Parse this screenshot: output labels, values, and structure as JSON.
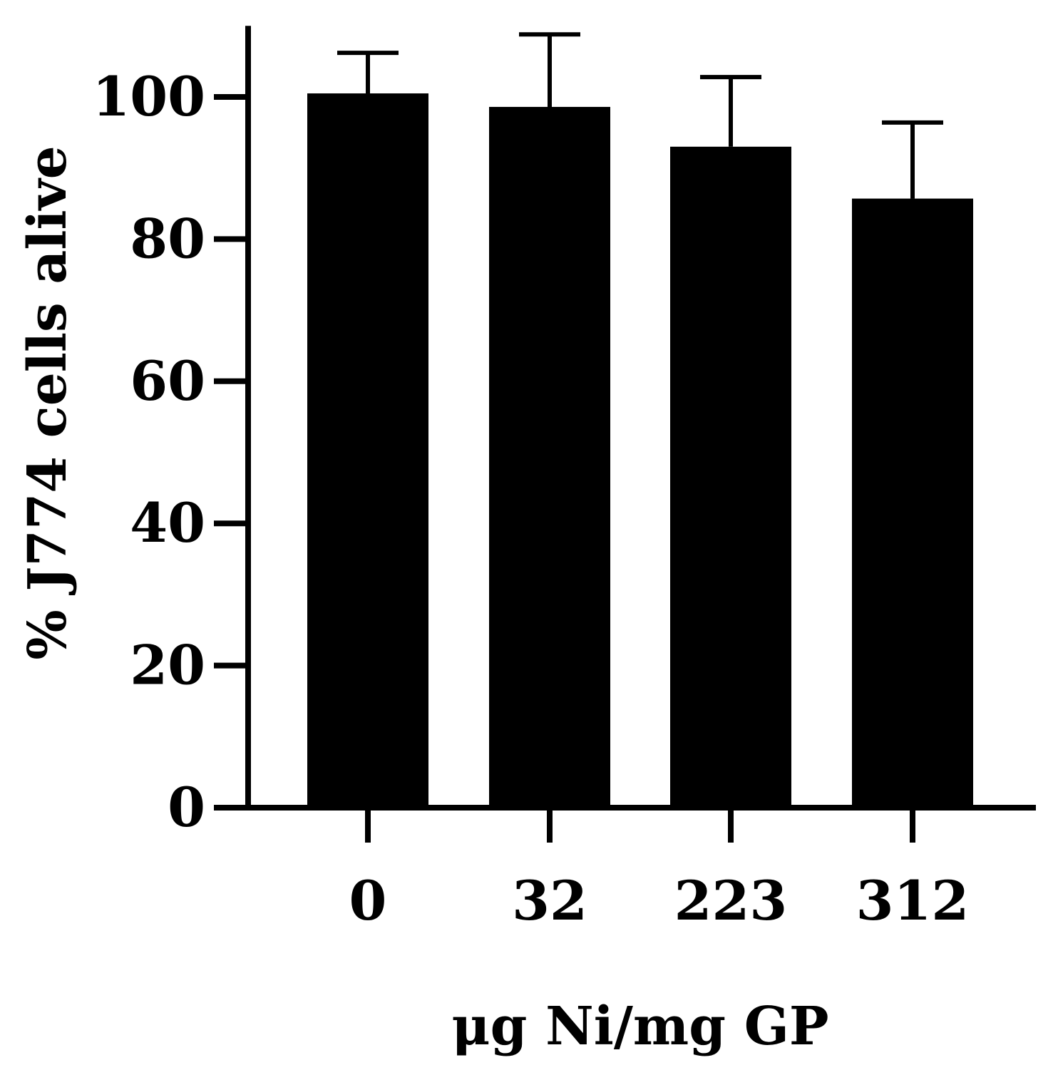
{
  "chart_data": {
    "type": "bar",
    "categories": [
      "0",
      "32",
      "223",
      "312"
    ],
    "values": [
      100.5,
      98.6,
      93,
      85.7
    ],
    "error_upper": [
      106.2,
      108.8,
      102.8,
      96.4
    ],
    "xlabel": "μg Ni/mg GP",
    "ylabel": "% J774 cells alive",
    "ylim": [
      0,
      110
    ],
    "yticks": [
      "0",
      "20",
      "40",
      "60",
      "80",
      "100"
    ],
    "grid": false,
    "bar_color": "#000000"
  }
}
